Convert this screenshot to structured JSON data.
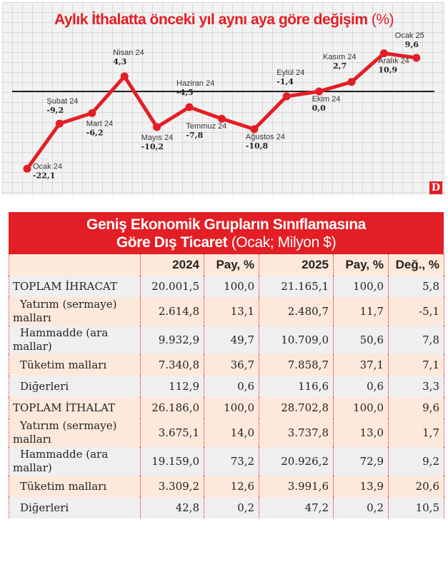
{
  "chart": {
    "title": "Aylık İthalatta önceki yıl aynı aya göre değişim",
    "unit": "(%)",
    "logo": "D"
  },
  "chart_data": {
    "type": "line",
    "title": "Aylık İthalatta önceki yıl aynı aya göre değişim (%)",
    "categories": [
      "Ocak 24",
      "Şubat 24",
      "Mart 24",
      "Nisan 24",
      "Mayıs 24",
      "Haziran 24",
      "Temmuz 24",
      "Ağustos 24",
      "Eylül 24",
      "Ekim 24",
      "Kasım 24",
      "Aralık 24",
      "Ocak 25"
    ],
    "values": [
      -22.1,
      -9.2,
      -6.2,
      4.3,
      -10.2,
      -4.5,
      -7.8,
      -10.8,
      -1.4,
      0.0,
      2.7,
      10.9,
      9.6
    ],
    "value_labels": [
      "-22,1",
      "-9,2",
      "-6,2",
      "4,3",
      "-10,2",
      "-4,5",
      "-7,8",
      "-10,8",
      "-1,4",
      "0,0",
      "2,7",
      "10,9",
      "9,6"
    ],
    "xlabel": "",
    "ylabel": "%",
    "grid": true,
    "baseline": 0,
    "line_color": "#e31e24"
  },
  "table": {
    "title_bold": "Geniş Ekonomik Grupların Sınıflamasına Göre Dış Ticaret",
    "title_normal": "(Ocak; Milyon $)",
    "headers": [
      "",
      "2024",
      "Pay, %",
      "2025",
      "Pay, %",
      "Değ., %"
    ],
    "rows": [
      {
        "name": "TOPLAM İHRACAT",
        "v2024": "20.001,5",
        "p2024": "100,0",
        "v2025": "21.165,1",
        "p2025": "100,0",
        "chg": "5,8"
      },
      {
        "name": "Yatırım (sermaye) malları",
        "v2024": "2.614,8",
        "p2024": "13,1",
        "v2025": "2.480,7",
        "p2025": "11,7",
        "chg": "-5,1"
      },
      {
        "name": "Hammadde (ara mallar)",
        "v2024": "9.932,9",
        "p2024": "49,7",
        "v2025": "10.709,0",
        "p2025": "50,6",
        "chg": "7,8"
      },
      {
        "name": "Tüketim malları",
        "v2024": "7.340,8",
        "p2024": "36,7",
        "v2025": "7.858,7",
        "p2025": "37,1",
        "chg": "7,1"
      },
      {
        "name": "Diğerleri",
        "v2024": "112,9",
        "p2024": "0,6",
        "v2025": "116,6",
        "p2025": "0,6",
        "chg": "3,3"
      },
      {
        "name": "TOPLAM İTHALAT",
        "v2024": "26.186,0",
        "p2024": "100,0",
        "v2025": "28.702,8",
        "p2025": "100,0",
        "chg": "9,6"
      },
      {
        "name": "Yatırım (sermaye) malları",
        "v2024": "3.675,1",
        "p2024": "14,0",
        "v2025": "3.737,8",
        "p2025": "13,0",
        "chg": "1,7"
      },
      {
        "name": "Hammadde (ara mallar)",
        "v2024": "19.159,0",
        "p2024": "73,2",
        "v2025": "20.926,2",
        "p2025": "72,9",
        "chg": "9,2"
      },
      {
        "name": "Tüketim malları",
        "v2024": "3.309,2",
        "p2024": "12,6",
        "v2025": "3.991,6",
        "p2025": "13,9",
        "chg": "20,6"
      },
      {
        "name": "Diğerleri",
        "v2024": "42,8",
        "p2024": "0,2",
        "v2025": "47,2",
        "p2025": "0,2",
        "chg": "10,5"
      }
    ]
  }
}
